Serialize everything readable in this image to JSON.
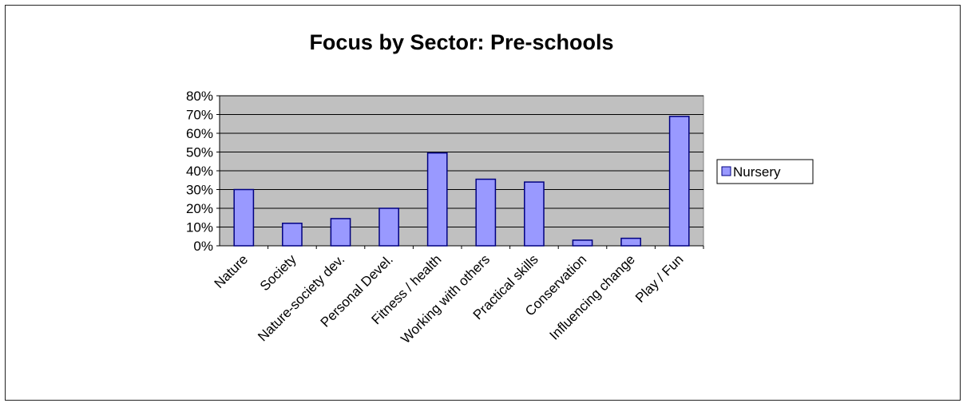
{
  "chart_data": {
    "type": "bar",
    "title": "Focus by Sector: Pre-schools",
    "xlabel": "",
    "ylabel": "",
    "categories": [
      "Nature",
      "Society",
      "Nature-society dev.",
      "Personal Devel.",
      "Fitness / health",
      "Working with others",
      "Practical skills",
      "Conservation",
      "Influencing change",
      "Play / Fun"
    ],
    "series": [
      {
        "name": "Nursery",
        "values": [
          0.3,
          0.12,
          0.145,
          0.2,
          0.495,
          0.355,
          0.34,
          0.03,
          0.04,
          0.69
        ]
      }
    ],
    "ylim": [
      0,
      0.8
    ],
    "yticks": [
      0,
      0.1,
      0.2,
      0.3,
      0.4,
      0.5,
      0.6,
      0.7,
      0.8
    ],
    "ytick_labels": [
      "0%",
      "10%",
      "20%",
      "30%",
      "40%",
      "50%",
      "60%",
      "70%",
      "80%"
    ],
    "grid": true,
    "legend_position": "right",
    "colors": {
      "bar_fill": "#9999ff",
      "bar_stroke": "#000080",
      "plot_background": "#c0c0c0",
      "gridline": "#000000"
    }
  }
}
